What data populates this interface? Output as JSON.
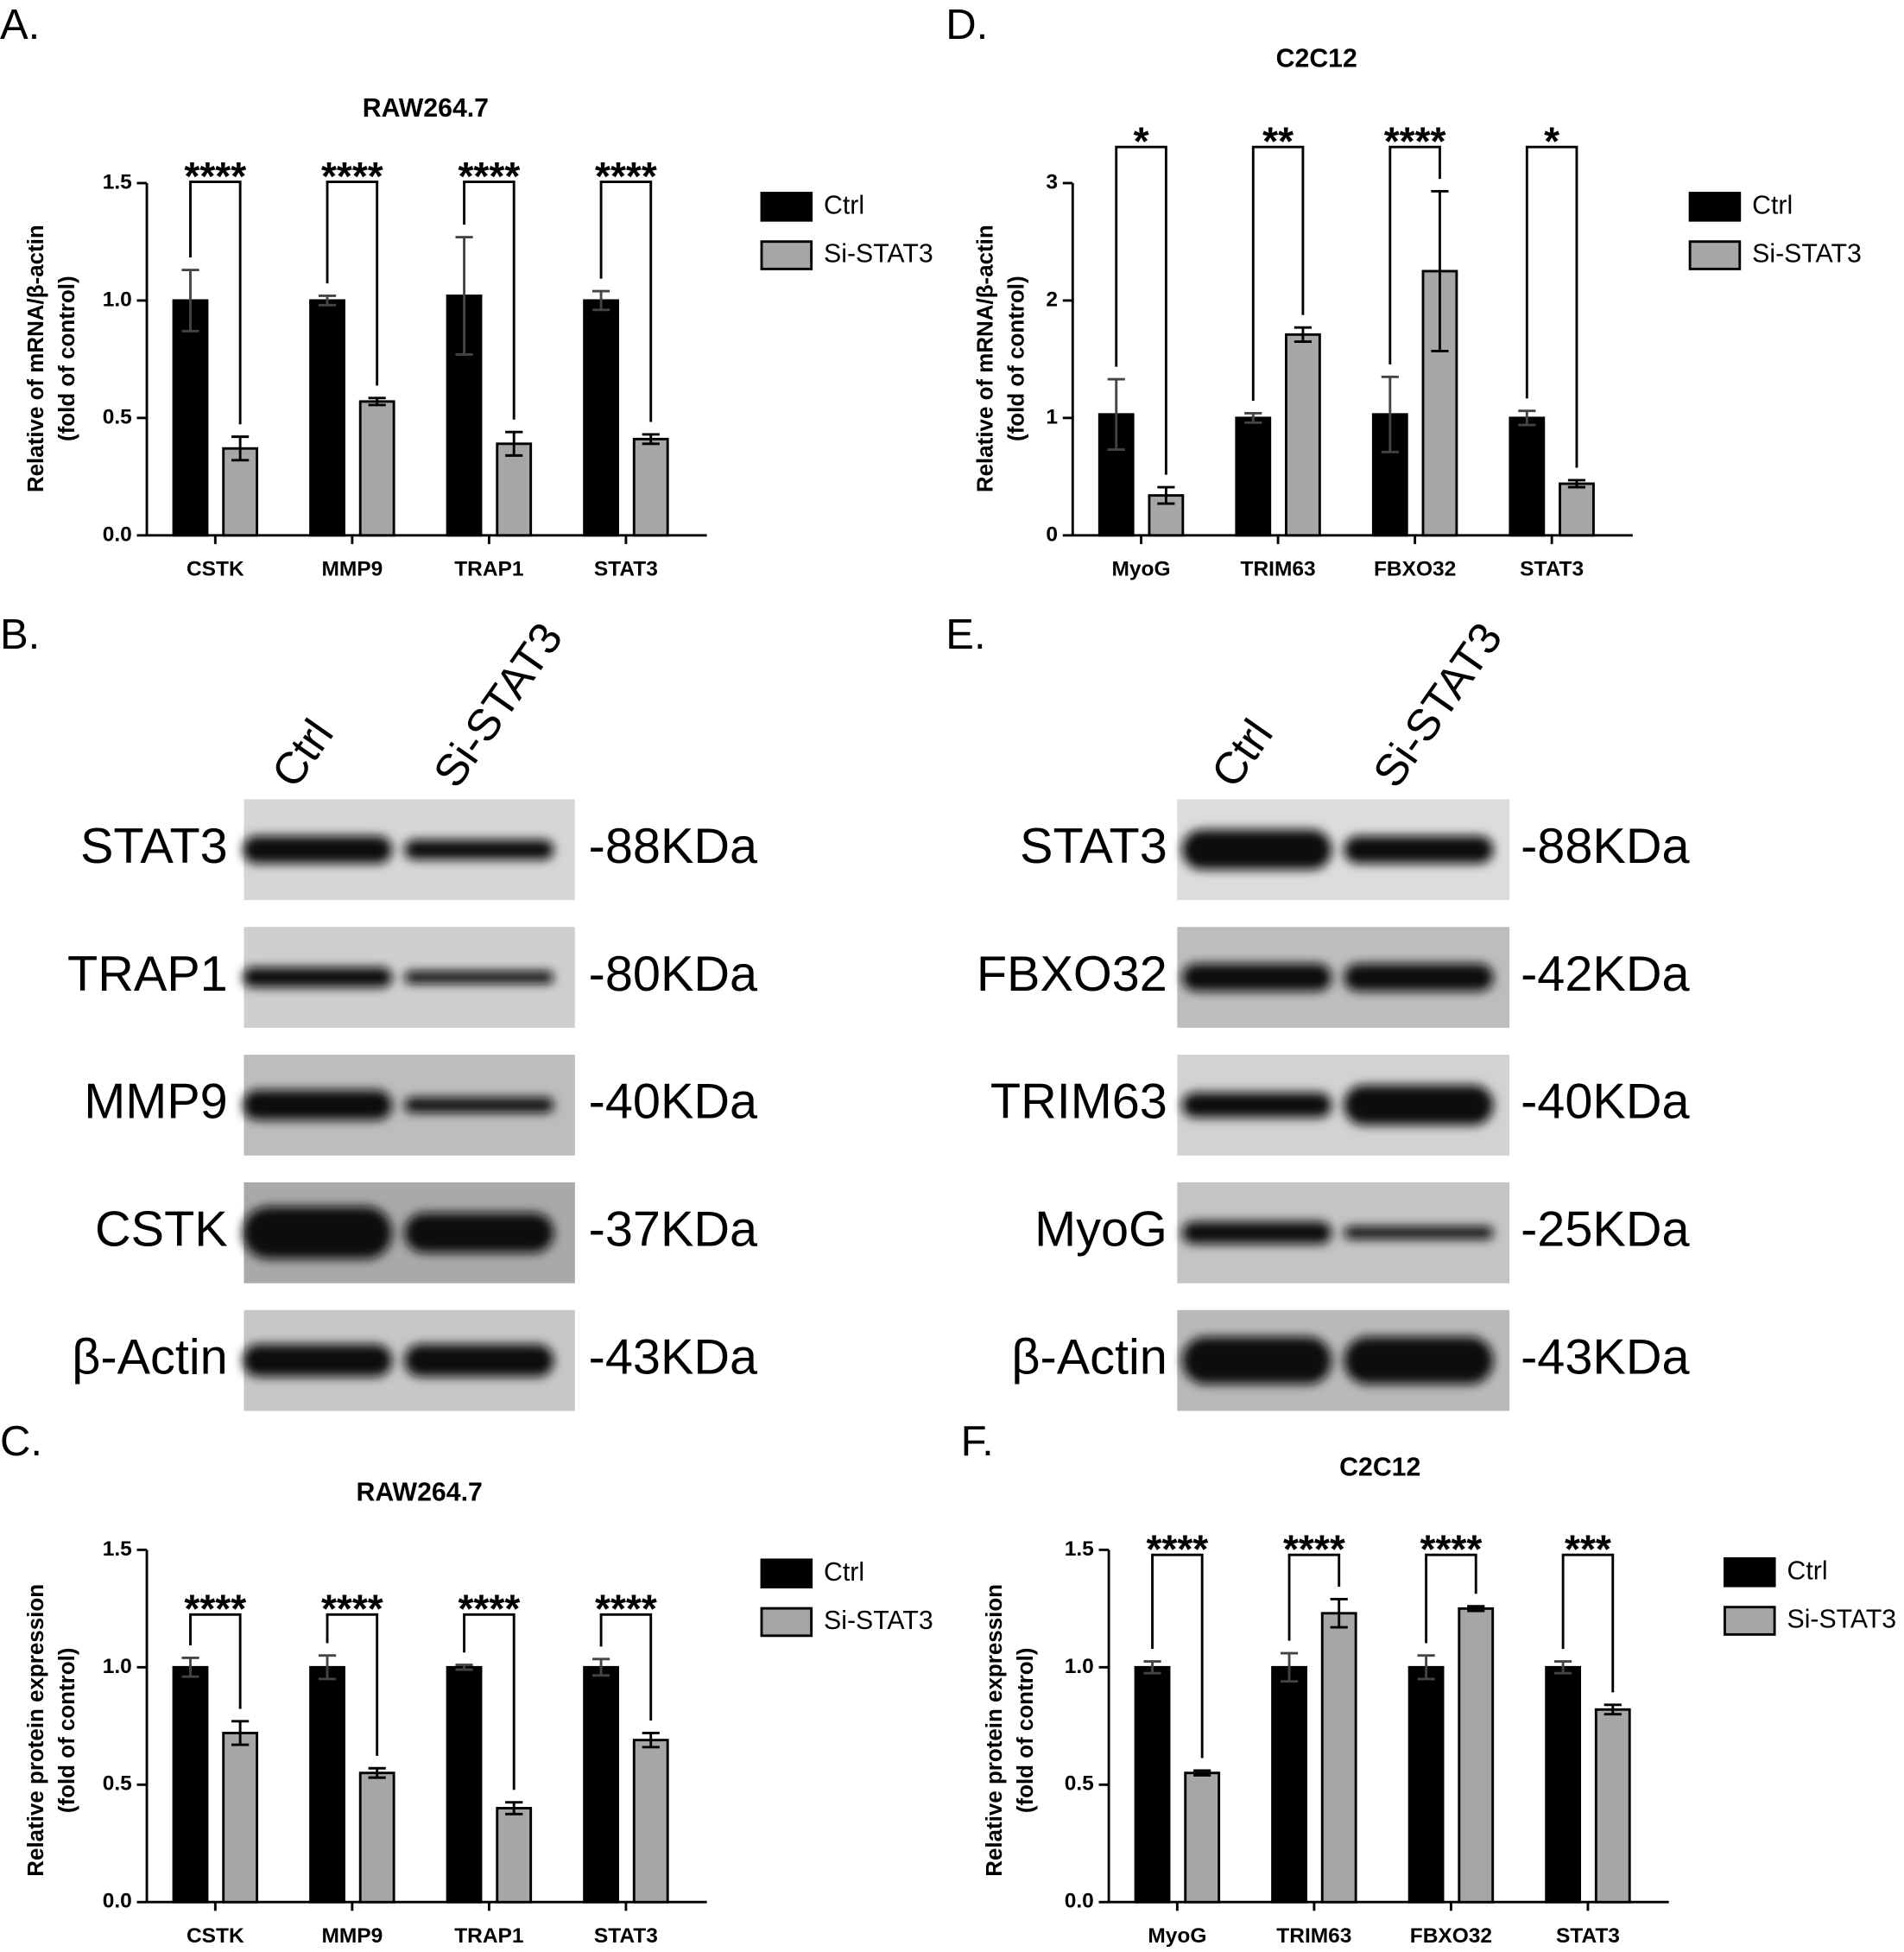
{
  "chart_data": [
    {
      "type": "bar",
      "panel_label": "A.",
      "title": "RAW264.7",
      "ylabel": [
        "Relative  of mRNA/β-actin",
        "(fold of control)"
      ],
      "categories": [
        "CSTK",
        "MMP9",
        "TRAP1",
        "STAT3"
      ],
      "series": [
        {
          "name": "Ctrl",
          "color": "#000000",
          "values": [
            1.0,
            1.0,
            1.02,
            1.0
          ],
          "errors": [
            0.13,
            0.02,
            0.25,
            0.04
          ]
        },
        {
          "name": "Si-STAT3",
          "color": "#a6a6a6",
          "values": [
            0.37,
            0.57,
            0.39,
            0.41
          ],
          "errors": [
            0.05,
            0.015,
            0.05,
            0.02
          ]
        }
      ],
      "significance": [
        "****",
        "****",
        "****",
        "****"
      ],
      "ylim": [
        0,
        1.5
      ],
      "yticks": [
        {
          "value": 0,
          "label": "0.0"
        },
        0.5,
        {
          "value": 1,
          "label": "1.0"
        },
        1.5
      ],
      "legend": "right"
    },
    {
      "type": "bar",
      "panel_label": "D.",
      "title": "C2C12",
      "ylabel": [
        "Relative  of mRNA/β-actin",
        "(fold of control)"
      ],
      "categories": [
        "MyoG",
        "TRIM63",
        "FBXO32",
        "STAT3"
      ],
      "series": [
        {
          "name": "Ctrl",
          "color": "#000000",
          "values": [
            1.03,
            1.0,
            1.03,
            1.0
          ],
          "errors": [
            0.3,
            0.04,
            0.32,
            0.06
          ]
        },
        {
          "name": "Si-STAT3",
          "color": "#a6a6a6",
          "values": [
            0.34,
            1.71,
            2.25,
            0.44
          ],
          "errors": [
            0.07,
            0.06,
            0.68,
            0.03
          ]
        }
      ],
      "significance": [
        "*",
        "**",
        "****",
        "*"
      ],
      "ylim": [
        0,
        3
      ],
      "yticks": [
        0,
        1,
        2,
        3
      ],
      "legend": "right"
    },
    {
      "type": "bar",
      "panel_label": "C.",
      "title": "RAW264.7",
      "ylabel": [
        "Relative protein  expression",
        "(fold of control)"
      ],
      "categories": [
        "CSTK",
        "MMP9",
        "TRAP1",
        "STAT3"
      ],
      "series": [
        {
          "name": "Ctrl",
          "color": "#000000",
          "values": [
            1.0,
            1.0,
            1.0,
            1.0
          ],
          "errors": [
            0.04,
            0.05,
            0.01,
            0.035
          ]
        },
        {
          "name": "Si-STAT3",
          "color": "#a6a6a6",
          "values": [
            0.72,
            0.55,
            0.4,
            0.69
          ],
          "errors": [
            0.05,
            0.02,
            0.025,
            0.03
          ]
        }
      ],
      "significance": [
        "****",
        "****",
        "****",
        "****"
      ],
      "ylim": [
        0,
        1.5
      ],
      "yticks": [
        {
          "value": 0,
          "label": "0.0"
        },
        0.5,
        {
          "value": 1,
          "label": "1.0"
        },
        1.5
      ],
      "legend": "right"
    },
    {
      "type": "bar",
      "panel_label": "F.",
      "title": "C2C12",
      "ylabel": [
        "Relative protein  expression",
        "(fold of control)"
      ],
      "categories": [
        "MyoG",
        "TRIM63",
        "FBXO32",
        "STAT3"
      ],
      "series": [
        {
          "name": "Ctrl",
          "color": "#000000",
          "values": [
            1.0,
            1.0,
            1.0,
            1.0
          ],
          "errors": [
            0.025,
            0.06,
            0.05,
            0.025
          ]
        },
        {
          "name": "Si-STAT3",
          "color": "#a6a6a6",
          "values": [
            0.55,
            1.23,
            1.25,
            0.82
          ],
          "errors": [
            0.01,
            0.06,
            0.01,
            0.02
          ]
        }
      ],
      "significance": [
        "****",
        "****",
        "****",
        "***"
      ],
      "ylim": [
        0,
        1.5
      ],
      "yticks": [
        {
          "value": 0,
          "label": "0.0"
        },
        0.5,
        {
          "value": 1,
          "label": "1.0"
        },
        1.5
      ],
      "legend": "right"
    }
  ],
  "blots": [
    {
      "panel_label": "B.",
      "lanes": [
        "Ctrl",
        "Si-STAT3"
      ],
      "rows": [
        {
          "protein": "STAT3",
          "size": "-88KDa"
        },
        {
          "protein": "TRAP1",
          "size": "-80KDa"
        },
        {
          "protein": "MMP9",
          "size": "-40KDa"
        },
        {
          "protein": "CSTK",
          "size": "-37KDa"
        },
        {
          "protein": "β-Actin",
          "size": "-43KDa"
        }
      ]
    },
    {
      "panel_label": "E.",
      "lanes": [
        "Ctrl",
        "Si-STAT3"
      ],
      "rows": [
        {
          "protein": "STAT3",
          "size": "-88KDa"
        },
        {
          "protein": "FBXO32",
          "size": "-42KDa"
        },
        {
          "protein": "TRIM63",
          "size": "-40KDa"
        },
        {
          "protein": "MyoG",
          "size": "-25KDa"
        },
        {
          "protein": "β-Actin",
          "size": "-43KDa"
        }
      ]
    }
  ]
}
